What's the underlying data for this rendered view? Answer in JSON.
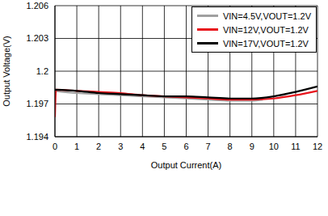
{
  "chart_data": {
    "type": "line",
    "x_label": "Output Current(A)",
    "y_label": "Output Voltage(V)",
    "xlim": [
      0,
      12
    ],
    "xticks": [
      0,
      1,
      2,
      3,
      4,
      5,
      6,
      7,
      8,
      9,
      10,
      11,
      12
    ],
    "ylim": [
      1.194,
      1.206
    ],
    "yticks": [
      1.194,
      1.197,
      1.2,
      1.203,
      1.206
    ],
    "grid": true,
    "legend": "upper right",
    "series": [
      {
        "name": "VIN=4.5V,VOUT=1.2V",
        "color": "#a0a0a0",
        "x": [
          0,
          1,
          2,
          3,
          4,
          5,
          6,
          7,
          8,
          9,
          9.5
        ],
        "values": [
          1.1982,
          1.198,
          1.1979,
          1.1978,
          1.1977,
          1.1976,
          1.1975,
          1.1974,
          1.1973,
          1.1973,
          1.1974
        ]
      },
      {
        "name": "VIN=12V,VOUT=1.2V",
        "color": "#e8141c",
        "x": [
          0,
          0.05,
          1,
          2,
          3,
          4,
          5,
          6,
          7,
          8,
          9,
          10,
          11,
          12
        ],
        "values": [
          1.1958,
          1.1983,
          1.1982,
          1.1981,
          1.198,
          1.1978,
          1.1977,
          1.1976,
          1.1975,
          1.1974,
          1.1974,
          1.1975,
          1.1978,
          1.1982
        ]
      },
      {
        "name": "VIN=17V,VOUT=1.2V",
        "color": "#000000",
        "x": [
          0,
          1,
          2,
          3,
          4,
          5,
          6,
          7,
          8,
          9,
          10,
          11,
          12
        ],
        "values": [
          1.1983,
          1.1982,
          1.198,
          1.1979,
          1.1978,
          1.1977,
          1.1977,
          1.1976,
          1.1975,
          1.1975,
          1.1977,
          1.1981,
          1.1986
        ]
      }
    ]
  }
}
